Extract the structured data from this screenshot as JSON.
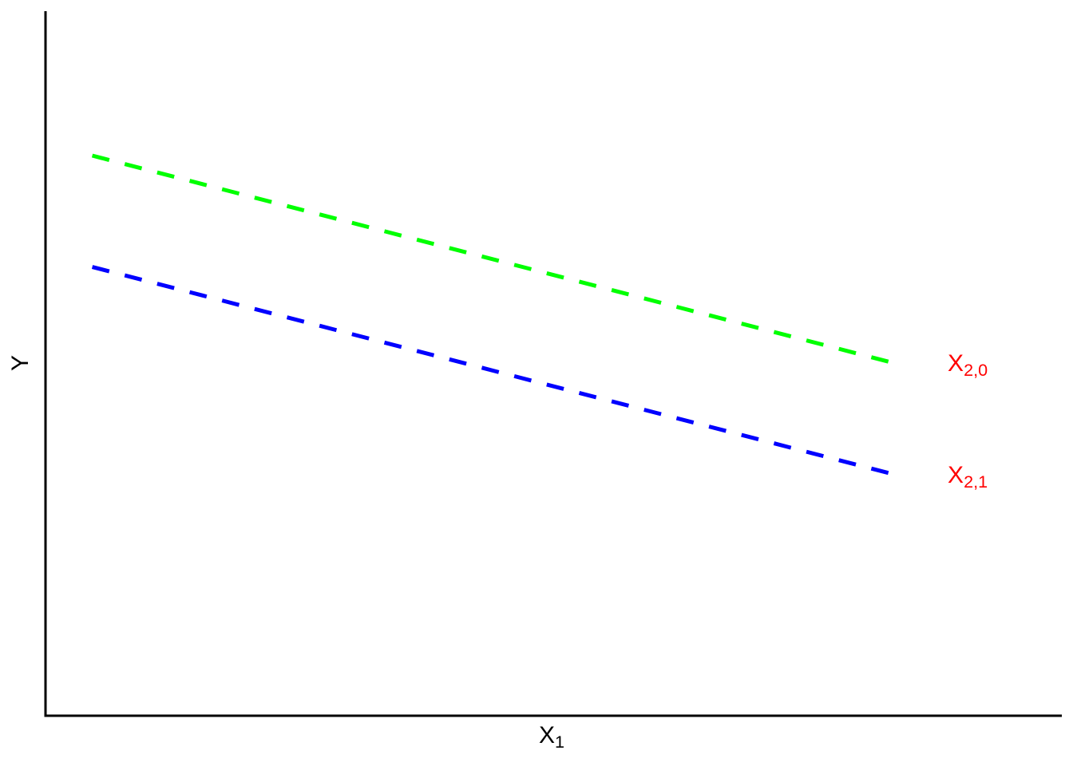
{
  "chart_data": {
    "type": "line",
    "title": "",
    "xlabel": {
      "base": "X",
      "subscript": "1"
    },
    "ylabel": "Y",
    "background_color": "#FFFFFF",
    "axis_color": "#000000",
    "axes": {
      "style": "L-open",
      "ticks": false,
      "tick_labels": false,
      "grid": false,
      "x_range_norm": [
        0,
        1
      ],
      "y_range_norm": [
        0,
        1
      ]
    },
    "legend": "none (direct red labels at right end of each line)",
    "series": [
      {
        "name": "line-X2-0",
        "label": {
          "base": "X",
          "subscript": "2,0"
        },
        "label_color": "#FF0000",
        "color": "#00FF00",
        "line_style": "dashed",
        "line_width": 5,
        "points_norm": [
          {
            "x": 0.046,
            "y": 0.795
          },
          {
            "x": 0.839,
            "y": 0.499
          }
        ]
      },
      {
        "name": "line-X2-1",
        "label": {
          "base": "X",
          "subscript": "2,1"
        },
        "label_color": "#FF0000",
        "color": "#0000FF",
        "line_style": "dashed",
        "line_width": 5,
        "points_norm": [
          {
            "x": 0.046,
            "y": 0.637
          },
          {
            "x": 0.839,
            "y": 0.341
          }
        ]
      }
    ]
  }
}
